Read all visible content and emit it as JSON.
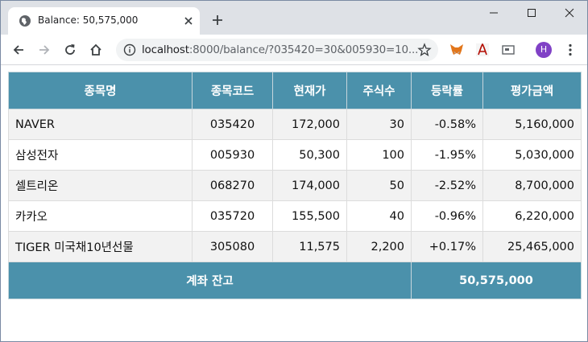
{
  "browser": {
    "tab_title": "Balance: 50,575,000",
    "url_host": "localhost",
    "url_rest": ":8000/balance/?035420=30&005930=10...",
    "avatar_letter": "H"
  },
  "table": {
    "headers": [
      "종목명",
      "종목코드",
      "현재가",
      "주식수",
      "등락률",
      "평가금액"
    ],
    "rows": [
      {
        "name": "NAVER",
        "code": "035420",
        "price": "172,000",
        "qty": "30",
        "change": "-0.58%",
        "value": "5,160,000"
      },
      {
        "name": "삼성전자",
        "code": "005930",
        "price": "50,300",
        "qty": "100",
        "change": "-1.95%",
        "value": "5,030,000"
      },
      {
        "name": "셀트리온",
        "code": "068270",
        "price": "174,000",
        "qty": "50",
        "change": "-2.52%",
        "value": "8,700,000"
      },
      {
        "name": "카카오",
        "code": "035720",
        "price": "155,500",
        "qty": "40",
        "change": "-0.96%",
        "value": "6,220,000"
      },
      {
        "name": "TIGER 미국채10년선물",
        "code": "305080",
        "price": "11,575",
        "qty": "2,200",
        "change": "+0.17%",
        "value": "25,465,000"
      }
    ],
    "footer_label": "계좌 잔고",
    "footer_total": "50,575,000"
  }
}
